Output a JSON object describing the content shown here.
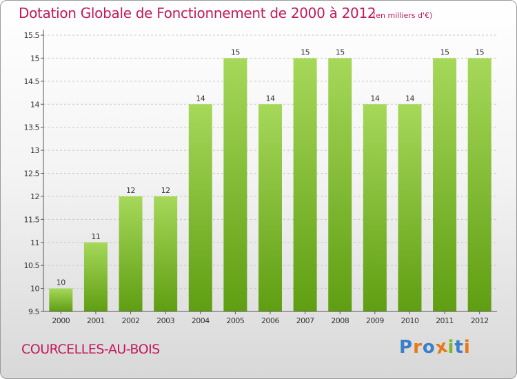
{
  "title": "Dotation Globale de Fonctionnement de 2000 à 2012",
  "unit_note": "(en milliers d'€)",
  "commune": "COURCELLES-AU-BOIS",
  "brand": {
    "letters": [
      "P",
      "r",
      "o",
      "x",
      "i",
      "t",
      "i"
    ],
    "colors": [
      "#3a7fc9",
      "#e8791a",
      "#3a7fc9",
      "#e8791a",
      "#7ab52a",
      "#3a7fc9",
      "#e8791a"
    ]
  },
  "colors": {
    "bar_light": "#a6d85a",
    "bar_dark": "#5f9e12",
    "grid": "#c8c8c8",
    "axis": "#555555",
    "text": "#333333"
  },
  "chart_data": {
    "type": "bar",
    "categories": [
      "2000",
      "2001",
      "2002",
      "2003",
      "2004",
      "2005",
      "2006",
      "2007",
      "2008",
      "2009",
      "2010",
      "2011",
      "2012"
    ],
    "values": [
      10,
      11,
      12,
      12,
      14,
      15,
      14,
      15,
      15,
      14,
      14,
      15,
      15
    ],
    "data_labels": [
      "10",
      "11",
      "12",
      "12",
      "14",
      "15",
      "14",
      "15",
      "15",
      "14",
      "14",
      "15",
      "15"
    ],
    "yticks": [
      9.5,
      10,
      10.5,
      11,
      11.5,
      12,
      12.5,
      13,
      13.5,
      14,
      14.5,
      15,
      15.5
    ],
    "ytick_labels": [
      "9.5",
      "10",
      "10.5",
      "11",
      "11.5",
      "12",
      "12.5",
      "13",
      "13.5",
      "14",
      "14.5",
      "15",
      "15.5"
    ],
    "ylim": [
      9.5,
      15.5
    ],
    "grid": true
  }
}
